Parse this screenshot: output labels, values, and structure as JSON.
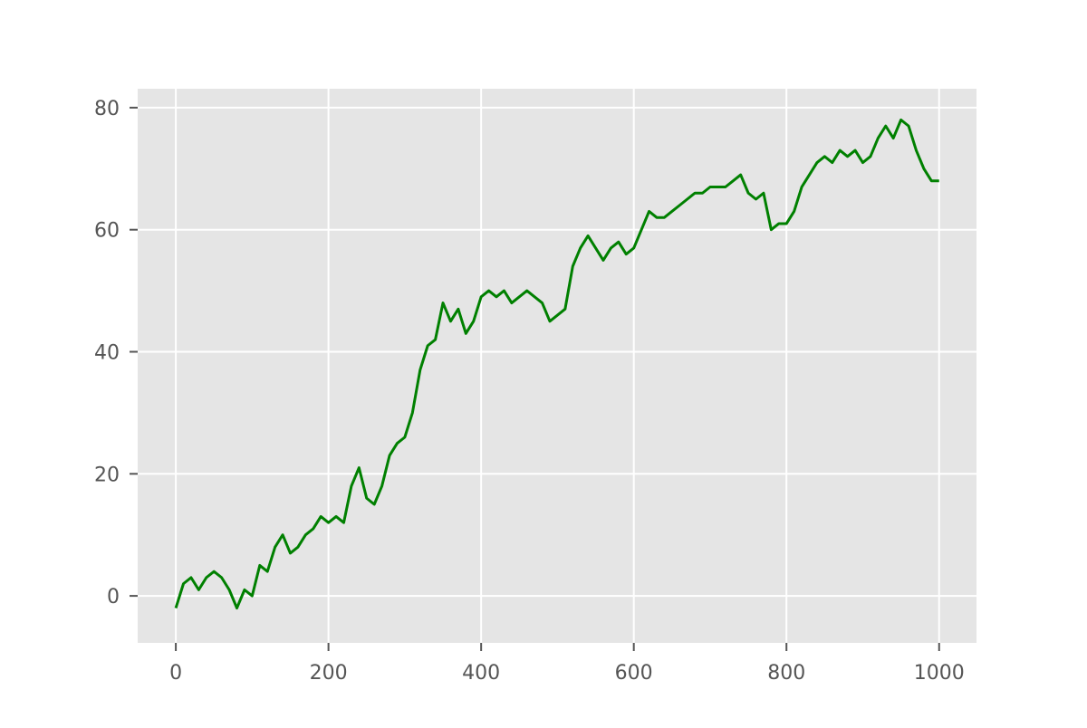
{
  "chart_data": {
    "type": "line",
    "x": [
      0,
      10,
      20,
      30,
      40,
      50,
      60,
      70,
      80,
      90,
      100,
      110,
      120,
      130,
      140,
      150,
      160,
      170,
      180,
      190,
      200,
      210,
      220,
      230,
      240,
      250,
      260,
      270,
      280,
      290,
      300,
      310,
      320,
      330,
      340,
      350,
      360,
      370,
      380,
      390,
      400,
      410,
      420,
      430,
      440,
      450,
      460,
      470,
      480,
      490,
      500,
      510,
      520,
      530,
      540,
      550,
      560,
      570,
      580,
      590,
      600,
      610,
      620,
      630,
      640,
      650,
      660,
      670,
      680,
      690,
      700,
      710,
      720,
      730,
      740,
      750,
      760,
      770,
      780,
      790,
      800,
      810,
      820,
      830,
      840,
      850,
      860,
      870,
      880,
      890,
      900,
      910,
      920,
      930,
      940,
      950,
      960,
      970,
      980,
      990,
      1000
    ],
    "series": [
      {
        "color": "#008000",
        "values": [
          -2,
          2,
          3,
          1,
          3,
          4,
          3,
          1,
          -2,
          1,
          0,
          5,
          4,
          8,
          10,
          7,
          8,
          10,
          11,
          13,
          12,
          13,
          12,
          18,
          21,
          16,
          15,
          18,
          23,
          25,
          26,
          30,
          37,
          41,
          42,
          48,
          45,
          47,
          43,
          45,
          49,
          50,
          49,
          50,
          48,
          49,
          50,
          49,
          48,
          45,
          46,
          47,
          54,
          57,
          59,
          57,
          55,
          57,
          58,
          56,
          57,
          60,
          63,
          62,
          62,
          63,
          64,
          65,
          66,
          66,
          67,
          67,
          67,
          68,
          69,
          66,
          65,
          66,
          60,
          61,
          61,
          63,
          67,
          69,
          71,
          72,
          71,
          73,
          72,
          73,
          71,
          72,
          75,
          77,
          75,
          78,
          77,
          73,
          70,
          68,
          68
        ]
      }
    ],
    "xlim": [
      -49.95,
      1048.95
    ],
    "xticks": [
      0,
      200,
      400,
      600,
      800,
      1000
    ],
    "ylim": [
      -7.7,
      83.1
    ],
    "yticks": [
      0,
      20,
      40,
      60,
      80
    ],
    "grid": true
  }
}
